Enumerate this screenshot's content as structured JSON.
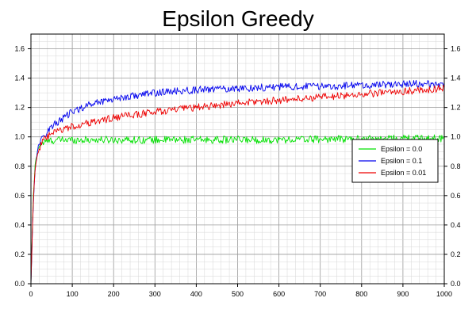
{
  "chart_data": {
    "type": "line",
    "title": "Epsilon Greedy",
    "xlabel": "",
    "ylabel": "",
    "xlim": [
      0,
      1000
    ],
    "ylim": [
      0,
      1.7
    ],
    "x_ticks": [
      0,
      100,
      200,
      300,
      400,
      500,
      600,
      700,
      800,
      900,
      1000
    ],
    "y_ticks": [
      0.0,
      0.2,
      0.4,
      0.6,
      0.8,
      1.0,
      1.2,
      1.4,
      1.6
    ],
    "y_tick_labels": [
      "0.0",
      "0.2",
      "0.4",
      "0.6",
      "0.8",
      "1.0",
      "1.2",
      "1.4",
      "1.6"
    ],
    "grid": "major and minor",
    "right_axis_mirrored": true,
    "legend_position": "right",
    "x_sample": [
      0,
      5,
      10,
      15,
      20,
      30,
      40,
      50,
      75,
      100,
      150,
      200,
      250,
      300,
      400,
      500,
      600,
      700,
      800,
      900,
      1000
    ],
    "series": [
      {
        "name": "Epsilon = 0.0",
        "color": "#00e000",
        "values": [
          0.0,
          0.55,
          0.8,
          0.9,
          0.94,
          0.96,
          0.97,
          0.975,
          0.98,
          0.98,
          0.98,
          0.98,
          0.98,
          0.98,
          0.98,
          0.98,
          0.98,
          0.985,
          0.985,
          0.99,
          0.99
        ]
      },
      {
        "name": "Epsilon = 0.1",
        "color": "#0000ee",
        "values": [
          0.0,
          0.5,
          0.78,
          0.9,
          0.95,
          1.0,
          1.04,
          1.07,
          1.12,
          1.17,
          1.23,
          1.26,
          1.28,
          1.3,
          1.32,
          1.33,
          1.34,
          1.345,
          1.35,
          1.36,
          1.36
        ]
      },
      {
        "name": "Epsilon = 0.01",
        "color": "#ee0000",
        "values": [
          0.0,
          0.52,
          0.78,
          0.88,
          0.92,
          0.97,
          1.0,
          1.02,
          1.05,
          1.07,
          1.1,
          1.13,
          1.15,
          1.17,
          1.2,
          1.23,
          1.25,
          1.27,
          1.29,
          1.31,
          1.33
        ]
      }
    ],
    "noise_amplitude": 0.025
  }
}
